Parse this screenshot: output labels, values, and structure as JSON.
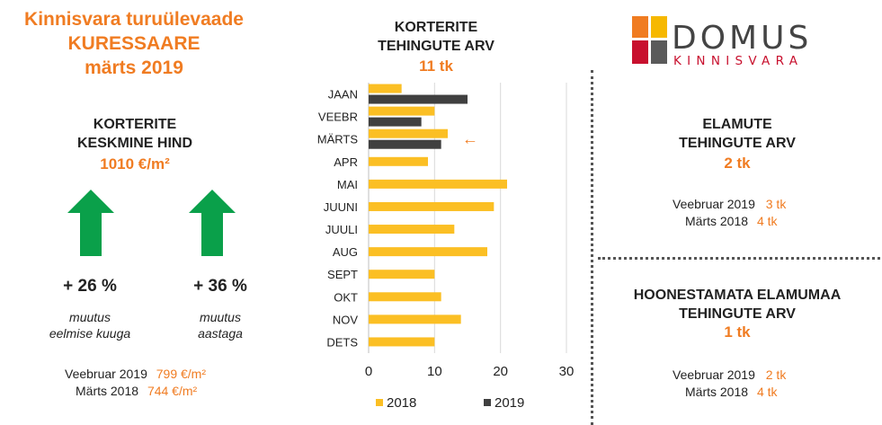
{
  "header": {
    "title_line1": "Kinnisvara turuülevaade",
    "title_line2": "KURESSAARE",
    "title_line3": "märts 2019"
  },
  "avg_price": {
    "heading_line1": "KORTERITE",
    "heading_line2": "KESKMINE HIND",
    "value": "1010 €/m²",
    "change_month": "+ 26 %",
    "change_month_label_1": "muutus",
    "change_month_label_2": "eelmise kuuga",
    "change_year": "+ 36 %",
    "change_year_label_1": "muutus",
    "change_year_label_2": "aastaga",
    "compare_1_label": "Veebruar 2019",
    "compare_1_value": "799 €/m²",
    "compare_2_label": "Märts 2018",
    "compare_2_value": "744 €/m²",
    "arrow_color": "#0aa04a"
  },
  "apartments_chart": {
    "heading_line1": "KORTERITE",
    "heading_line2": "TEHINGUTE ARV",
    "value": "11 tk"
  },
  "houses": {
    "heading_line1": "ELAMUTE",
    "heading_line2": "TEHINGUTE ARV",
    "value": "2 tk",
    "compare_1_label": "Veebruar 2019",
    "compare_1_value": "3 tk",
    "compare_2_label": "Märts 2018",
    "compare_2_value": "4 tk"
  },
  "land": {
    "heading_line1": "HOONESTAMATA ELAMUMAA",
    "heading_line2": "TEHINGUTE ARV",
    "value": "1 tk",
    "compare_1_label": "Veebruar 2019",
    "compare_1_value": "2 tk",
    "compare_2_label": "Märts 2018",
    "compare_2_value": "4 tk"
  },
  "logo": {
    "word": "DOMUS",
    "sub": "KINNISVARA",
    "colors": [
      "#f07c22",
      "#f6b800",
      "#c8102e",
      "#5a5a5a"
    ]
  },
  "chart_data": {
    "type": "bar",
    "orientation": "horizontal",
    "categories": [
      "JAAN",
      "VEEBR",
      "MÄRTS",
      "APR",
      "MAI",
      "JUUNI",
      "JUULI",
      "AUG",
      "SEPT",
      "OKT",
      "NOV",
      "DETS"
    ],
    "series": [
      {
        "name": "2018",
        "color": "#fbbf24",
        "values": [
          5,
          10,
          12,
          9,
          21,
          19,
          13,
          18,
          10,
          11,
          14,
          10
        ]
      },
      {
        "name": "2019",
        "color": "#404040",
        "values": [
          15,
          8,
          11,
          null,
          null,
          null,
          null,
          null,
          null,
          null,
          null,
          null
        ]
      }
    ],
    "xlim": [
      0,
      30
    ],
    "xticks": [
      0,
      10,
      20,
      30
    ],
    "grid": true,
    "legend_position": "bottom",
    "annotation": {
      "category": "MÄRTS",
      "symbol": "←",
      "color": "#f07c22"
    }
  }
}
